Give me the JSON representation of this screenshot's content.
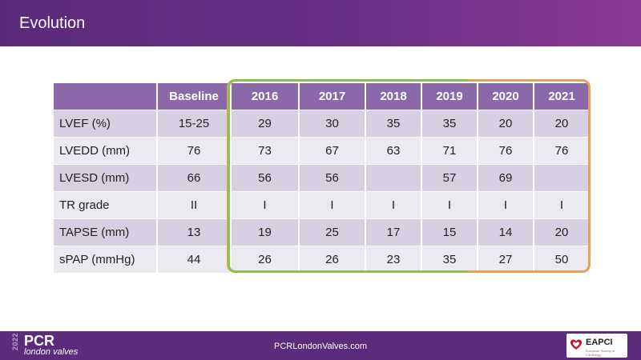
{
  "header": {
    "title": "Evolution"
  },
  "table": {
    "columns": [
      "",
      "Baseline",
      "2016",
      "2017",
      "2018",
      "2019",
      "2020",
      "2021"
    ],
    "rows": [
      [
        "LVEF (%)",
        "15-25",
        "29",
        "30",
        "35",
        "35",
        "20",
        "20"
      ],
      [
        "LVEDD (mm)",
        "76",
        "73",
        "67",
        "63",
        "71",
        "76",
        "76"
      ],
      [
        "LVESD (mm)",
        "66",
        "56",
        "56",
        "",
        "57",
        "69",
        ""
      ],
      [
        "TR grade",
        "II",
        "I",
        "I",
        "I",
        "I",
        "I",
        "I"
      ],
      [
        "TAPSE (mm)",
        "13",
        "19",
        "25",
        "17",
        "15",
        "14",
        "20"
      ],
      [
        "sPAP (mmHg)",
        "44",
        "26",
        "26",
        "23",
        "35",
        "27",
        "50"
      ]
    ]
  },
  "highlight_colors": {
    "green": "#8cc152",
    "orange": "#e8a257"
  },
  "footer": {
    "logo": {
      "year": "2022",
      "brand": "PCR",
      "sub": "london valves"
    },
    "url": "PCRLondonValves.com",
    "partner": {
      "name": "EAPCI",
      "tagline": "European Society of Cardiology"
    }
  },
  "colors": {
    "header": "#5a2a7a",
    "table_header": "#8a68aa",
    "row_dark": "#d6d0e2",
    "row_light": "#eceaf1",
    "footer": "#5c2c7c"
  }
}
